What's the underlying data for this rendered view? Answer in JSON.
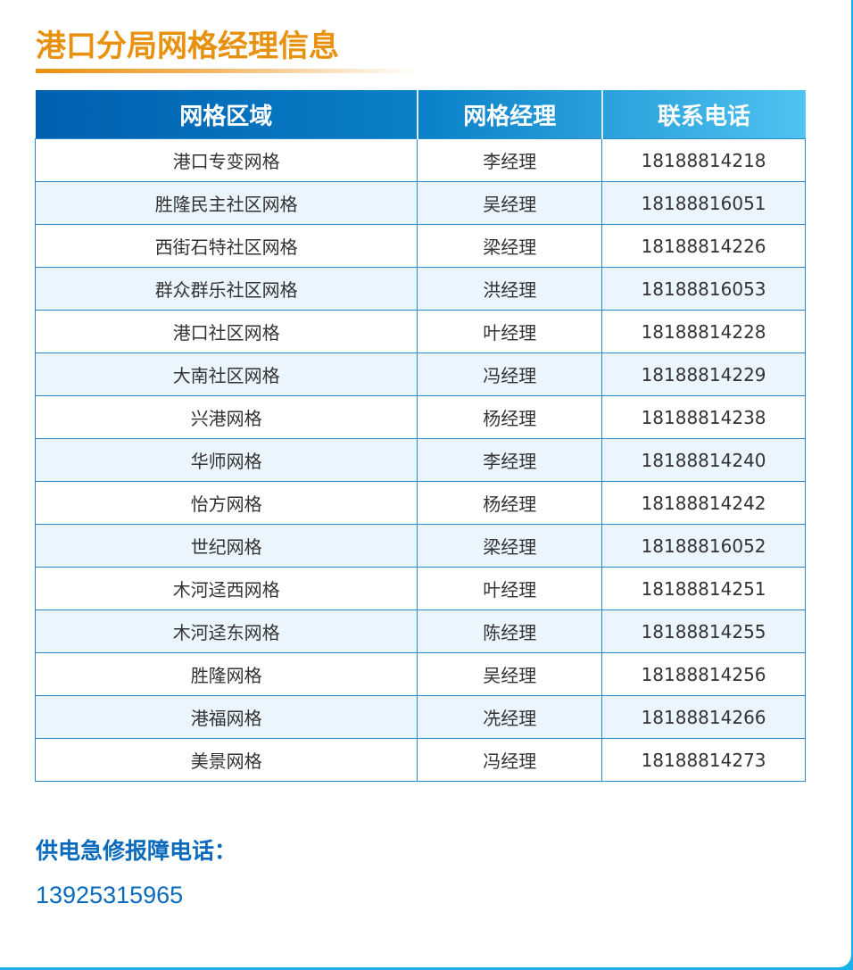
{
  "title": "港口分局网格经理信息",
  "colors": {
    "title": "#e8910f",
    "header_start": "#005fb0",
    "header_end": "#4fc3f0",
    "accent_blue": "#0a6bbd",
    "row_alt": "#eaf5fd"
  },
  "table": {
    "headers": [
      "网格区域",
      "网格经理",
      "联系电话"
    ],
    "rows": [
      [
        "港口专变网格",
        "李经理",
        "18188814218"
      ],
      [
        "胜隆民主社区网格",
        "吴经理",
        "18188816051"
      ],
      [
        "西街石特社区网格",
        "梁经理",
        "18188814226"
      ],
      [
        "群众群乐社区网格",
        "洪经理",
        "18188816053"
      ],
      [
        "港口社区网格",
        "叶经理",
        "18188814228"
      ],
      [
        "大南社区网格",
        "冯经理",
        "18188814229"
      ],
      [
        "兴港网格",
        "杨经理",
        "18188814238"
      ],
      [
        "华师网格",
        "李经理",
        "18188814240"
      ],
      [
        "怡方网格",
        "杨经理",
        "18188814242"
      ],
      [
        "世纪网格",
        "梁经理",
        "18188816052"
      ],
      [
        "木河迳西网格",
        "叶经理",
        "18188814251"
      ],
      [
        "木河迳东网格",
        "陈经理",
        "18188814255"
      ],
      [
        "胜隆网格",
        "吴经理",
        "18188814256"
      ],
      [
        "港福网格",
        "冼经理",
        "18188814266"
      ],
      [
        "美景网格",
        "冯经理",
        "18188814273"
      ]
    ]
  },
  "hotline": {
    "label": "供电急修报障电话：",
    "number": "13925315965"
  }
}
